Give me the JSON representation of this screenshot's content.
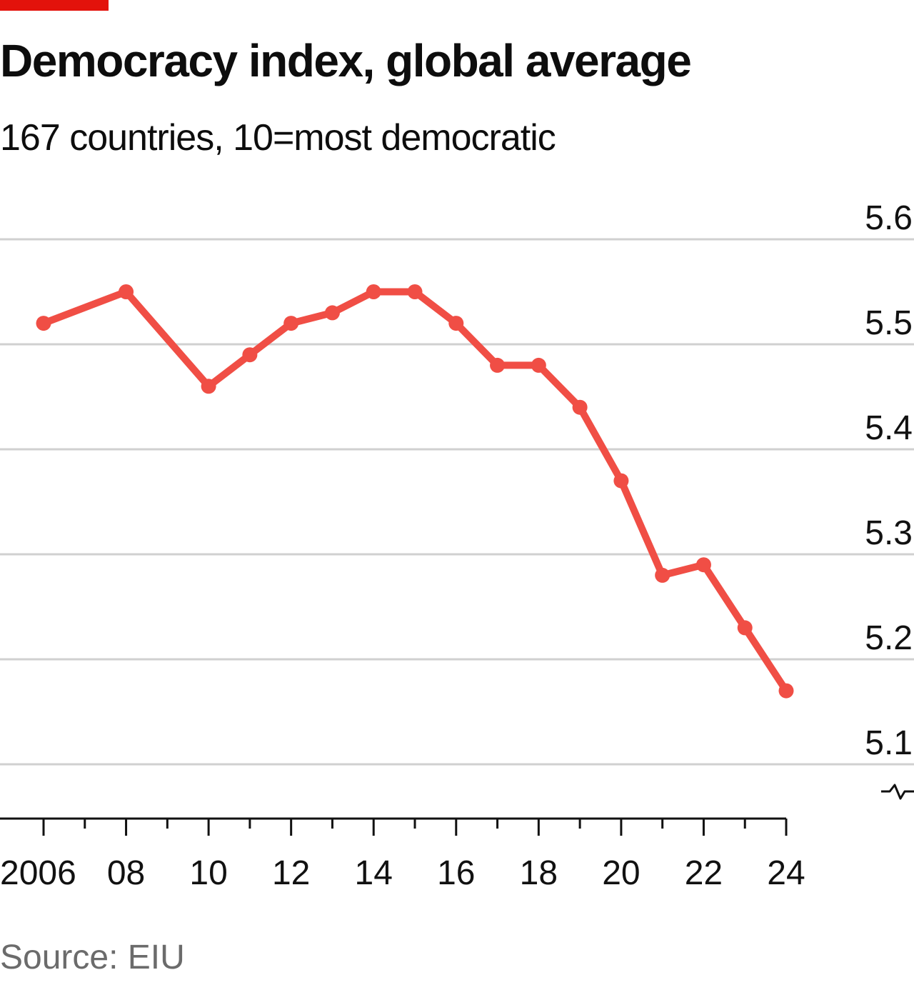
{
  "header": {
    "title": "Democracy index, global average",
    "subtitle": "167 countries, 10=most democratic"
  },
  "footer": {
    "source": "Source: EIU"
  },
  "colors": {
    "accent": "#e3120b",
    "series": "#f04e45",
    "grid": "#d0d0d0",
    "axis": "#111111"
  },
  "chart_data": {
    "type": "line",
    "title": "Democracy index, global average",
    "subtitle": "167 countries, 10=most democratic",
    "xlabel": "",
    "ylabel": "",
    "x": [
      2006,
      2008,
      2010,
      2011,
      2012,
      2013,
      2014,
      2015,
      2016,
      2017,
      2018,
      2019,
      2020,
      2021,
      2022,
      2023,
      2024
    ],
    "series": [
      {
        "name": "Global average",
        "values": [
          5.52,
          5.55,
          5.46,
          5.49,
          5.52,
          5.53,
          5.55,
          5.55,
          5.52,
          5.48,
          5.48,
          5.44,
          5.37,
          5.28,
          5.29,
          5.23,
          5.17
        ]
      }
    ],
    "xlim": [
      2006,
      2024
    ],
    "ylim": [
      5.1,
      5.6
    ],
    "x_ticks": [
      2006,
      2007,
      2008,
      2009,
      2010,
      2011,
      2012,
      2013,
      2014,
      2015,
      2016,
      2017,
      2018,
      2019,
      2020,
      2021,
      2022,
      2023,
      2024
    ],
    "x_tick_labels": [
      {
        "year": 2006,
        "label": "2006"
      },
      {
        "year": 2008,
        "label": "08"
      },
      {
        "year": 2010,
        "label": "10"
      },
      {
        "year": 2012,
        "label": "12"
      },
      {
        "year": 2014,
        "label": "14"
      },
      {
        "year": 2016,
        "label": "16"
      },
      {
        "year": 2018,
        "label": "18"
      },
      {
        "year": 2020,
        "label": "20"
      },
      {
        "year": 2022,
        "label": "22"
      },
      {
        "year": 2024,
        "label": "24"
      }
    ],
    "y_ticks": [
      5.1,
      5.2,
      5.3,
      5.4,
      5.5,
      5.6
    ],
    "y_tick_labels": [
      "5.1",
      "5.2",
      "5.3",
      "5.4",
      "5.5",
      "5.6"
    ],
    "y_axis_position": "right",
    "y_axis_break": true,
    "grid": true,
    "legend": "none"
  }
}
